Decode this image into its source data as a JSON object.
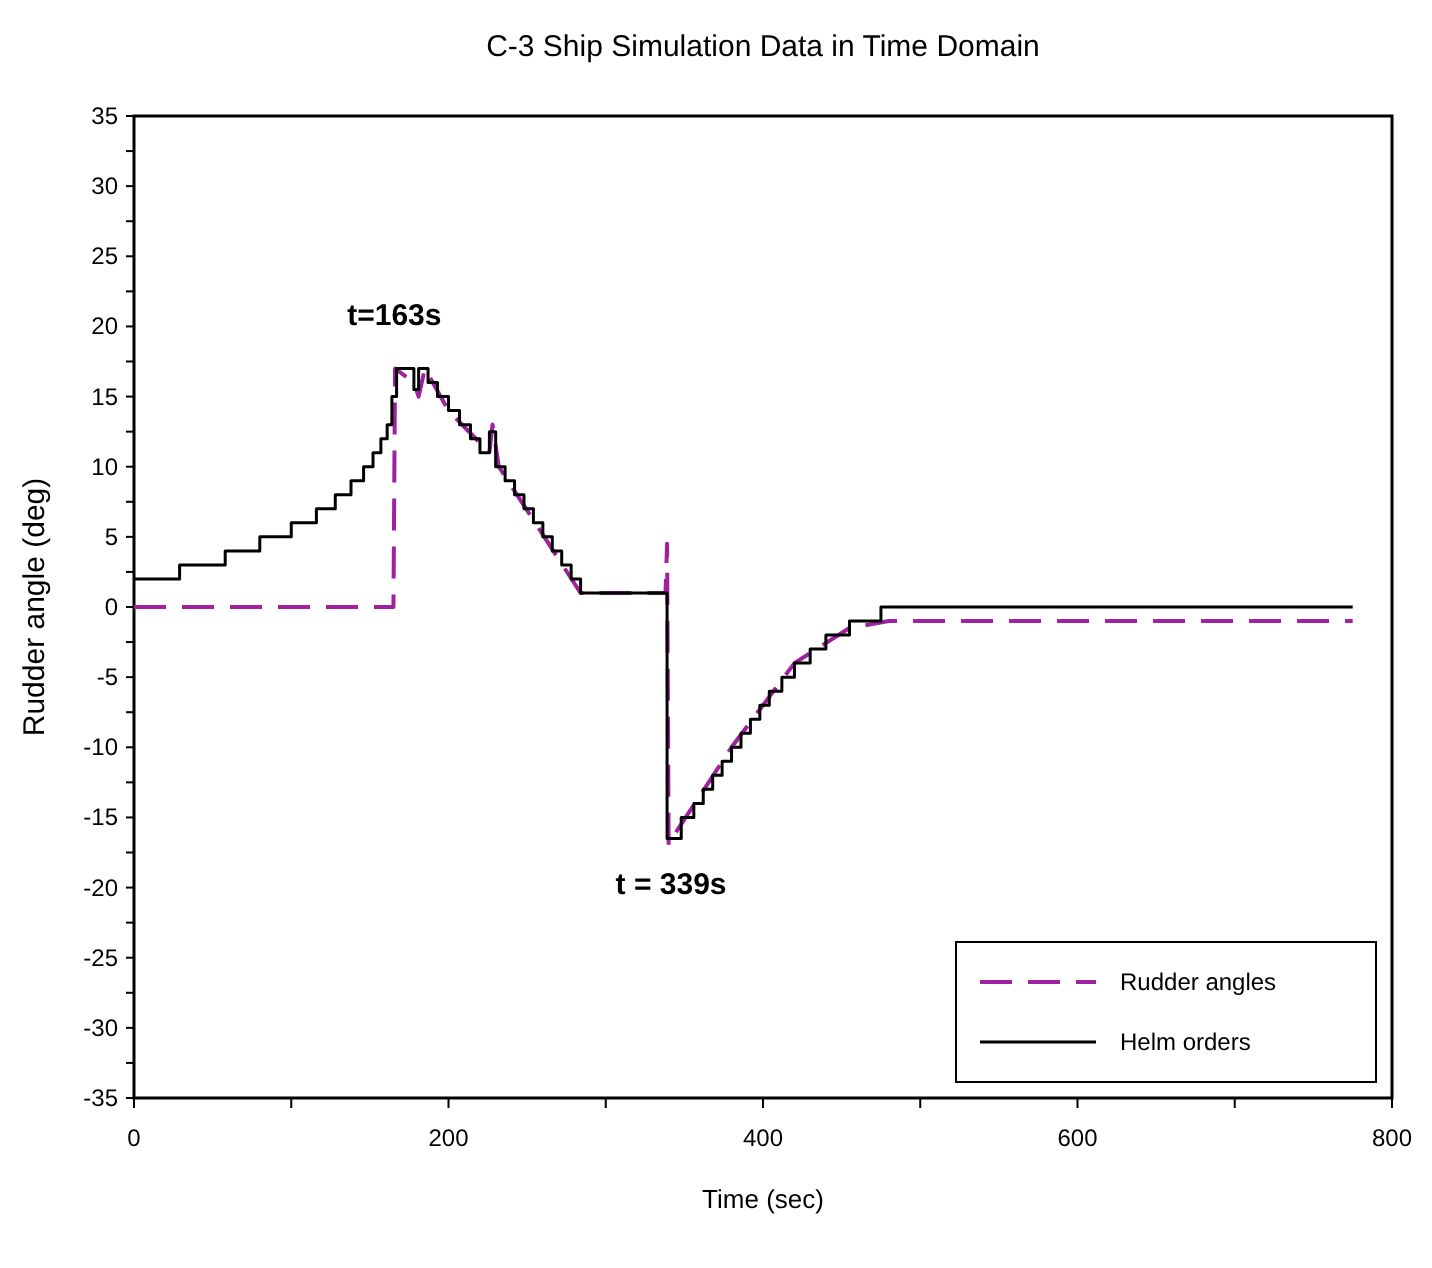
{
  "chart_data": {
    "type": "line",
    "title": "C-3 Ship Simulation Data in Time Domain",
    "xlabel": "Time (sec)",
    "ylabel": "Rudder angle (deg)",
    "xlim": [
      0,
      800
    ],
    "xticks": [
      0,
      {
        "value": 100,
        "label": null
      },
      200,
      {
        "value": 300,
        "label": null
      },
      400,
      {
        "value": 500,
        "label": null
      },
      600,
      {
        "value": 700,
        "label": null
      },
      800
    ],
    "ylim": [
      -35,
      35
    ],
    "yticks": [
      -35,
      {
        "value": -32.5,
        "label": null
      },
      -30,
      {
        "value": -27.5,
        "label": null
      },
      -25,
      {
        "value": -22.5,
        "label": null
      },
      -20,
      {
        "value": -17.5,
        "label": null
      },
      -15,
      {
        "value": -12.5,
        "label": null
      },
      -10,
      {
        "value": -7.5,
        "label": null
      },
      -5,
      {
        "value": -2.5,
        "label": null
      },
      0,
      {
        "value": 2.5,
        "label": null
      },
      5,
      {
        "value": 7.5,
        "label": null
      },
      10,
      {
        "value": 12.5,
        "label": null
      },
      15,
      {
        "value": 17.5,
        "label": null
      },
      20,
      {
        "value": 22.5,
        "label": null
      },
      25,
      {
        "value": 27.5,
        "label": null
      },
      30,
      {
        "value": 32.5,
        "label": null
      },
      35
    ],
    "grid": false,
    "legend": "bottom right",
    "annotations": [
      {
        "text": "t=163s",
        "x": 163,
        "y": 17
      },
      {
        "text": "t = 339s",
        "x": 339,
        "y": -16.5
      }
    ],
    "series": [
      {
        "name": "Rudder angles",
        "line_style": "dashed",
        "color": "#a020a0",
        "x": [
          0,
          165,
          166,
          178,
          181,
          185,
          200,
          226,
          228,
          232,
          284,
          338,
          339,
          340,
          345,
          380,
          420,
          455,
          480,
          775
        ],
        "values": [
          0,
          0,
          17,
          16,
          15,
          17,
          14,
          11,
          13,
          10,
          1,
          1,
          4.5,
          -17,
          -16,
          -10,
          -4,
          -1.5,
          -1,
          -1
        ]
      },
      {
        "name": "Helm orders",
        "type": "step",
        "line_style": "solid",
        "color": "#000000",
        "x": [
          0,
          29,
          58,
          80,
          100,
          116,
          128,
          138,
          146,
          152,
          157,
          161,
          164,
          167,
          178,
          181,
          187,
          193,
          200,
          207,
          214,
          220,
          226,
          230,
          236,
          242,
          248,
          254,
          260,
          266,
          272,
          278,
          284,
          339,
          348,
          356,
          362,
          368,
          374,
          380,
          386,
          392,
          398,
          404,
          412,
          420,
          430,
          440,
          455,
          475,
          775
        ],
        "values": [
          2,
          3,
          4,
          5,
          6,
          7,
          8,
          9,
          10,
          11,
          12,
          13,
          15,
          17,
          15.5,
          17,
          16,
          15,
          14,
          13,
          12,
          11,
          12.5,
          10,
          9,
          8,
          7,
          6,
          5,
          4,
          3,
          2,
          1,
          -16.5,
          -15,
          -14,
          -13,
          -12,
          -11,
          -10,
          -9,
          -8,
          -7,
          -6,
          -5,
          -4,
          -3,
          -2,
          -1,
          0,
          0
        ]
      }
    ]
  }
}
